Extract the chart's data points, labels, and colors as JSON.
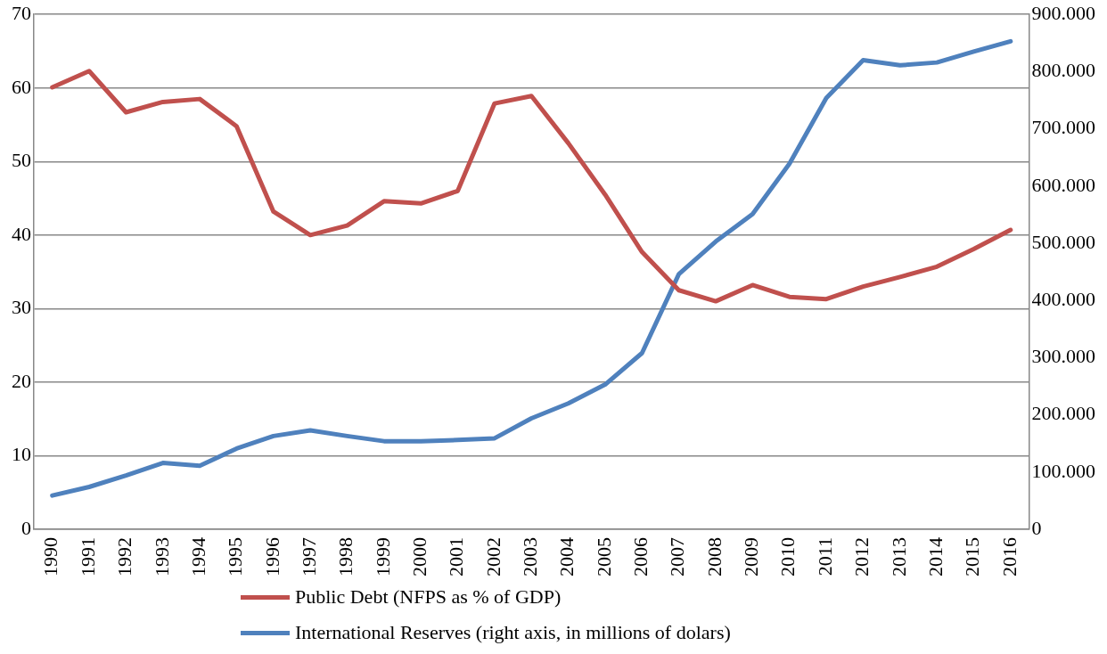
{
  "chart_data": {
    "type": "line",
    "categories": [
      "1990",
      "1991",
      "1992",
      "1993",
      "1994",
      "1995",
      "1996",
      "1997",
      "1998",
      "1999",
      "2000",
      "2001",
      "2002",
      "2003",
      "2004",
      "2005",
      "2006",
      "2007",
      "2008",
      "2009",
      "2010",
      "2011",
      "2012",
      "2013",
      "2014",
      "2015",
      "2016"
    ],
    "series": [
      {
        "name": "Public Debt (NFPS as % of GDP)",
        "color": "#c0504d",
        "values": [
          60.1,
          62.3,
          56.7,
          58.1,
          58.5,
          54.8,
          43.2,
          40.0,
          41.3,
          44.6,
          44.3,
          46.0,
          57.9,
          58.9,
          52.5,
          45.5,
          37.7,
          32.5,
          31.0,
          33.2,
          31.6,
          31.3,
          33.0,
          34.3,
          35.7,
          38.1,
          40.7
        ]
      },
      {
        "name": "International Reserves (right axis, in millions of dolars)",
        "color": "#4f81bd",
        "axis": "y2",
        "values": [
          59000,
          74000,
          94000,
          116000,
          111000,
          141000,
          163000,
          173000,
          163000,
          154000,
          154000,
          156000,
          159000,
          194000,
          220000,
          253000,
          308000,
          446000,
          503000,
          551000,
          639000,
          754000,
          820000,
          811000,
          816000,
          835000,
          853000
        ]
      }
    ],
    "ylim": [
      0,
      70
    ],
    "yticks": [
      0,
      10,
      20,
      30,
      40,
      50,
      60,
      70
    ],
    "y2lim": [
      0,
      900000
    ],
    "y2ticks": [
      {
        "value": 0,
        "label": "0"
      },
      {
        "value": 100000,
        "label": "100.000"
      },
      {
        "value": 200000,
        "label": "200.000"
      },
      {
        "value": 300000,
        "label": "300.000"
      },
      {
        "value": 400000,
        "label": "400.000"
      },
      {
        "value": 500000,
        "label": "500.000"
      },
      {
        "value": 600000,
        "label": "600.000"
      },
      {
        "value": 700000,
        "label": "700.000"
      },
      {
        "value": 800000,
        "label": "800.000"
      },
      {
        "value": 900000,
        "label": "900.000"
      }
    ],
    "grid": "y",
    "legend": "bottom",
    "marker": "none",
    "line_style": "solid"
  }
}
